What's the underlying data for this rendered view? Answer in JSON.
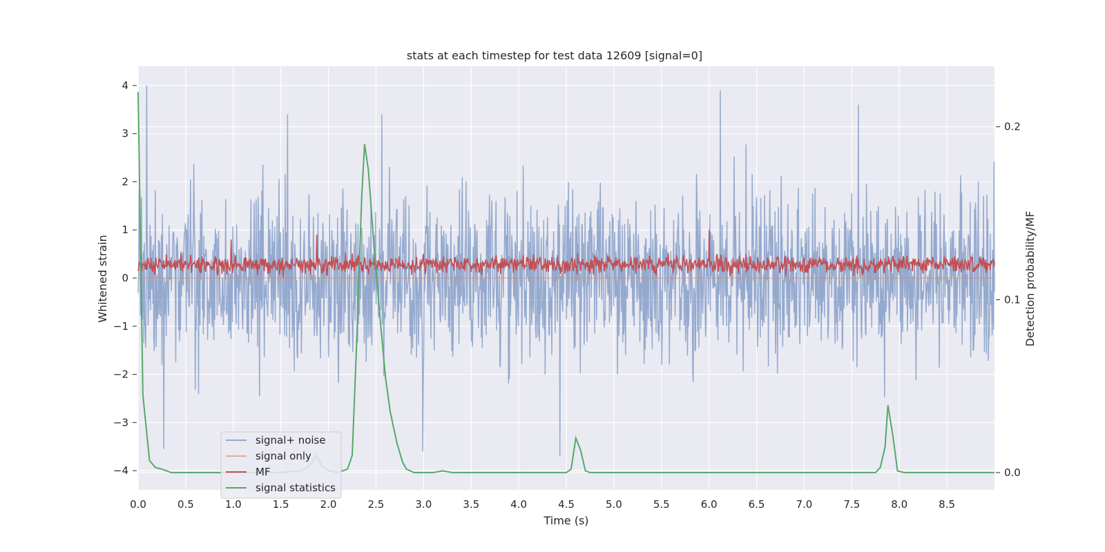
{
  "chart_data": {
    "type": "line",
    "title": "stats at each timestep for test data 12609 [signal=0]",
    "xlabel": "Time (s)",
    "ylabel": "Whitened strain",
    "ylabel_right": "Detection probability/MF",
    "xlim": [
      0.0,
      9.0
    ],
    "ylim": [
      -4.4,
      4.4
    ],
    "ylim_right": [
      -0.01,
      0.235
    ],
    "x_ticks": [
      "0.0",
      "0.5",
      "1.0",
      "1.5",
      "2.0",
      "2.5",
      "3.0",
      "3.5",
      "4.0",
      "4.5",
      "5.0",
      "5.5",
      "6.0",
      "6.5",
      "7.0",
      "7.5",
      "8.0",
      "8.5"
    ],
    "y_ticks": [
      "4",
      "3",
      "2",
      "1",
      "0",
      "−1",
      "−2",
      "−3",
      "−4"
    ],
    "y_ticks_right": [
      "0.2",
      "0.1",
      "0.0"
    ],
    "grid": true,
    "background": "#eaeaf2",
    "legend_position": "lower-left",
    "series": [
      {
        "name": "signal+ noise",
        "axis": "left",
        "color": "#4c72b0",
        "description": "dense noise, amplitude mostly within ±2.5, peaks to about 4.0 near t=0.1",
        "amplitude_typical": 2.3,
        "peaks": [
          [
            0.09,
            4.0
          ],
          [
            1.57,
            3.4
          ],
          [
            2.56,
            3.4
          ],
          [
            6.12,
            3.9
          ],
          [
            7.57,
            3.6
          ],
          [
            2.99,
            -3.6
          ],
          [
            4.43,
            -3.7
          ],
          [
            0.27,
            -3.55
          ]
        ]
      },
      {
        "name": "signal only",
        "axis": "left",
        "color": "#dd8452",
        "x": [
          0.0,
          9.0
        ],
        "y": [
          0.0,
          0.0
        ]
      },
      {
        "name": "MF",
        "axis": "left",
        "color": "#c44e52",
        "description": "noisy band between about 0.0 and 0.6, peaks near 1.0",
        "band": [
          0.0,
          0.6
        ],
        "peaks": [
          [
            0.98,
            0.8
          ],
          [
            1.88,
            0.9
          ],
          [
            6.0,
            1.0
          ]
        ]
      },
      {
        "name": "signal statistics",
        "axis": "right",
        "color": "#55a868",
        "x": [
          0.0,
          0.05,
          0.12,
          0.18,
          0.25,
          0.35,
          0.5,
          1.0,
          1.5,
          1.7,
          1.78,
          1.83,
          1.87,
          1.93,
          2.0,
          2.1,
          2.2,
          2.25,
          2.3,
          2.35,
          2.38,
          2.42,
          2.48,
          2.55,
          2.6,
          2.65,
          2.72,
          2.78,
          2.82,
          2.9,
          3.0,
          3.1,
          3.2,
          3.3,
          3.5,
          4.0,
          4.5,
          4.55,
          4.6,
          4.65,
          4.7,
          4.75,
          5.0,
          6.0,
          6.5,
          7.0,
          7.5,
          7.75,
          7.8,
          7.85,
          7.88,
          7.93,
          7.98,
          8.05,
          8.5,
          9.0
        ],
        "y": [
          0.22,
          0.045,
          0.007,
          0.003,
          0.002,
          0.0,
          0.0,
          0.0,
          0.0,
          0.001,
          0.003,
          0.006,
          0.01,
          0.004,
          0.001,
          0.0,
          0.002,
          0.01,
          0.08,
          0.16,
          0.19,
          0.175,
          0.13,
          0.085,
          0.055,
          0.035,
          0.017,
          0.006,
          0.002,
          0.0,
          0.0,
          0.0,
          0.001,
          0.0,
          0.0,
          0.0,
          0.0,
          0.002,
          0.02,
          0.013,
          0.001,
          0.0,
          0.0,
          0.0,
          0.0,
          0.0,
          0.0,
          0.0,
          0.003,
          0.015,
          0.039,
          0.022,
          0.001,
          0.0,
          0.0,
          0.0
        ]
      }
    ]
  }
}
